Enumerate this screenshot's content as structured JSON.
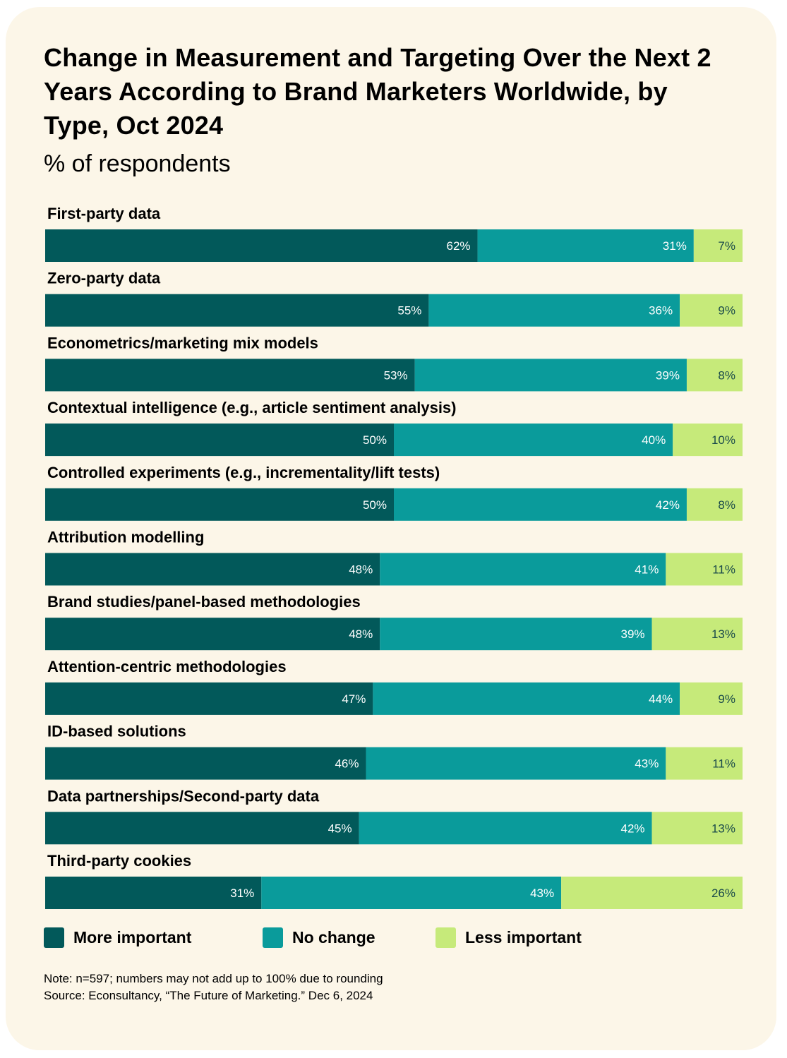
{
  "title": "Change in Measurement and Targeting Over the Next 2 Years According to Brand Marketers Worldwide, by Type, Oct 2024",
  "subtitle": "% of respondents",
  "note": "Note: n=597; numbers may not add up to 100% due to rounding",
  "source": "Source: Econsultancy, “The Future of Marketing.” Dec 6, 2024",
  "colors": {
    "background": "#fcf6e8",
    "more_important": "#02595a",
    "no_change": "#0a9b9b",
    "less_important": "#c6ea7a",
    "label_dark_bg": "#ffffff",
    "label_light_bg": "#1a4a4a"
  },
  "legend": [
    {
      "label": "More important",
      "color": "#02595a"
    },
    {
      "label": "No change",
      "color": "#0a9b9b"
    },
    {
      "label": "Less important",
      "color": "#c6ea7a"
    }
  ],
  "chart_data": {
    "type": "bar",
    "orientation": "horizontal",
    "stacked": true,
    "title": "Change in Measurement and Targeting Over the Next 2 Years According to Brand Marketers Worldwide, by Type, Oct 2024",
    "subtitle": "% of respondents",
    "xlim": [
      0,
      100
    ],
    "unit": "%",
    "categories": [
      "First-party data",
      "Zero-party data",
      "Econometrics/marketing mix models",
      "Contextual intelligence (e.g., article sentiment analysis)",
      "Controlled experiments (e.g., incrementality/lift tests)",
      "Attribution modelling",
      "Brand studies/panel-based methodologies",
      "Attention-centric methodologies",
      "ID-based solutions",
      "Data partnerships/Second-party data",
      "Third-party cookies"
    ],
    "series": [
      {
        "name": "More important",
        "values": [
          62,
          55,
          53,
          50,
          50,
          48,
          48,
          47,
          46,
          45,
          31
        ]
      },
      {
        "name": "No change",
        "values": [
          31,
          36,
          39,
          40,
          42,
          41,
          39,
          44,
          43,
          42,
          43
        ]
      },
      {
        "name": "Less important",
        "values": [
          7,
          9,
          8,
          10,
          8,
          11,
          13,
          9,
          11,
          13,
          26
        ]
      }
    ],
    "legend_position": "bottom"
  }
}
